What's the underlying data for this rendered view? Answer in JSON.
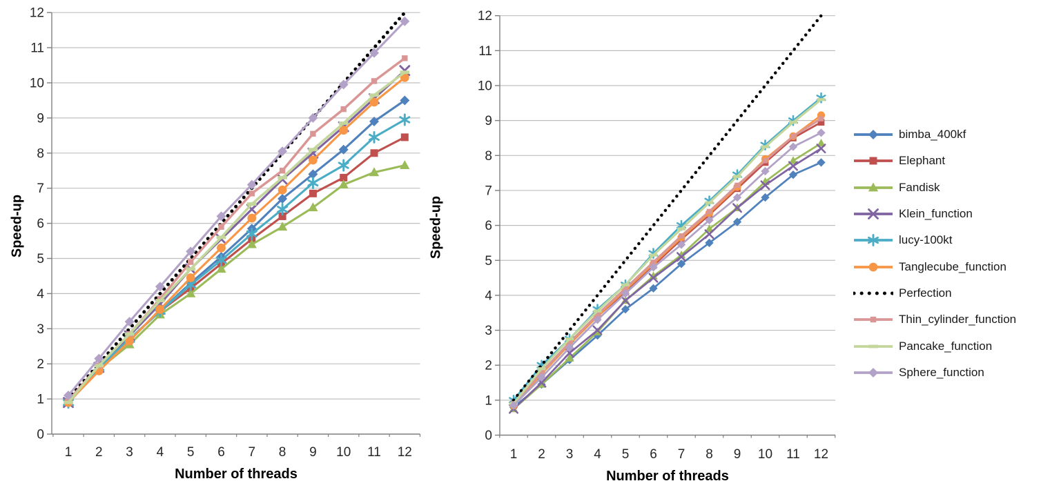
{
  "page": {
    "background": "#ffffff",
    "grid_color": "#bfbfbf",
    "axis_color": "#7f7f7f",
    "tick_text_color": "#262626"
  },
  "legend": {
    "position": "right",
    "items": [
      {
        "id": "bimba_400kf",
        "label": "bimba_400kf"
      },
      {
        "id": "elephant",
        "label": "Elephant"
      },
      {
        "id": "fandisk",
        "label": "Fandisk"
      },
      {
        "id": "klein_function",
        "label": "Klein_function"
      },
      {
        "id": "lucy-100kt",
        "label": "lucy-100kt"
      },
      {
        "id": "tanglecube_function",
        "label": "Tanglecube_function"
      },
      {
        "id": "perfection",
        "label": "Perfection"
      },
      {
        "id": "thin_cylinder_function",
        "label": "Thin_cylinder_function"
      },
      {
        "id": "pancake_function",
        "label": "Pancake_function"
      },
      {
        "id": "sphere_function",
        "label": "Sphere_function"
      }
    ]
  },
  "chart_data": [
    {
      "type": "line",
      "title": "",
      "xlabel": "Number of threads",
      "ylabel": "Speed-up",
      "x": [
        1,
        2,
        3,
        4,
        5,
        6,
        7,
        8,
        9,
        10,
        11,
        12
      ],
      "xticklabels": [
        "1",
        "2",
        "3",
        "4",
        "5",
        "6",
        "7",
        "8",
        "9",
        "10",
        "11",
        "12"
      ],
      "yticks": [
        0,
        1,
        2,
        3,
        4,
        5,
        6,
        7,
        8,
        9,
        10,
        11,
        12
      ],
      "ylim": [
        0,
        12
      ],
      "grid": "horizontal",
      "series": [
        {
          "name": "bimba_400kf",
          "color": "#4F81BD",
          "marker": "diamond",
          "line": "solid",
          "values": [
            0.9,
            1.9,
            2.7,
            3.5,
            4.3,
            5.05,
            5.85,
            6.7,
            7.4,
            8.1,
            8.9,
            9.5
          ]
        },
        {
          "name": "Elephant",
          "color": "#C0504D",
          "marker": "square",
          "line": "solid",
          "values": [
            0.9,
            1.85,
            2.7,
            3.5,
            4.15,
            4.85,
            5.55,
            6.2,
            6.85,
            7.3,
            8.0,
            8.45
          ]
        },
        {
          "name": "Fandisk",
          "color": "#9BBB59",
          "marker": "triangle",
          "line": "solid",
          "values": [
            0.9,
            1.85,
            2.55,
            3.4,
            4.0,
            4.7,
            5.4,
            5.9,
            6.45,
            7.1,
            7.45,
            7.65
          ]
        },
        {
          "name": "Klein_function",
          "color": "#8064A2",
          "marker": "x",
          "line": "solid",
          "values": [
            0.9,
            1.9,
            2.8,
            3.7,
            4.7,
            5.55,
            6.4,
            7.25,
            8.0,
            8.75,
            9.55,
            10.35
          ]
        },
        {
          "name": "lucy-100kt",
          "color": "#4BACC6",
          "marker": "asterisk",
          "line": "solid",
          "values": [
            0.9,
            1.9,
            2.7,
            3.5,
            4.25,
            4.95,
            5.7,
            6.4,
            7.15,
            7.65,
            8.45,
            8.95
          ]
        },
        {
          "name": "Tanglecube_function",
          "color": "#F79646",
          "marker": "circle",
          "line": "solid",
          "values": [
            0.9,
            1.8,
            2.65,
            3.55,
            4.45,
            5.3,
            6.15,
            6.95,
            7.8,
            8.65,
            9.45,
            10.15
          ]
        },
        {
          "name": "Perfection",
          "color": "#000000",
          "marker": "none",
          "line": "dotted",
          "values": [
            1,
            2,
            3,
            4,
            5,
            6,
            7,
            8,
            9,
            10,
            11,
            12
          ]
        },
        {
          "name": "Thin_cylinder_function",
          "color": "#D99694",
          "marker": "square-small",
          "line": "solid",
          "values": [
            0.95,
            1.95,
            2.85,
            3.85,
            4.9,
            5.9,
            6.85,
            7.5,
            8.55,
            9.25,
            10.05,
            10.7
          ]
        },
        {
          "name": "Pancake_function",
          "color": "#C3D69B",
          "marker": "dash",
          "line": "solid",
          "values": [
            0.9,
            1.95,
            2.85,
            3.8,
            4.7,
            5.6,
            6.55,
            7.3,
            8.1,
            8.85,
            9.65,
            10.3
          ]
        },
        {
          "name": "Sphere_function",
          "color": "#B3A2C7",
          "marker": "diamond",
          "line": "solid",
          "values": [
            1.1,
            2.15,
            3.2,
            4.2,
            5.2,
            6.2,
            7.1,
            8.05,
            9.0,
            9.95,
            10.85,
            11.75
          ]
        }
      ]
    },
    {
      "type": "line",
      "title": "",
      "xlabel": "Number of threads",
      "ylabel": "Speed-up",
      "x": [
        1,
        2,
        3,
        4,
        5,
        6,
        7,
        8,
        9,
        10,
        11,
        12
      ],
      "xticklabels": [
        "1",
        "2",
        "3",
        "4",
        "5",
        "6",
        "7",
        "8",
        "9",
        "10",
        "11",
        "12"
      ],
      "yticks": [
        0,
        1,
        2,
        3,
        4,
        5,
        6,
        7,
        8,
        9,
        10,
        11,
        12
      ],
      "ylim": [
        0,
        12
      ],
      "grid": "horizontal",
      "series": [
        {
          "name": "bimba_400kf",
          "color": "#4F81BD",
          "marker": "diamond",
          "line": "solid",
          "values": [
            0.8,
            1.45,
            2.15,
            2.85,
            3.6,
            4.2,
            4.9,
            5.5,
            6.1,
            6.8,
            7.45,
            7.8
          ]
        },
        {
          "name": "Elephant",
          "color": "#C0504D",
          "marker": "square",
          "line": "solid",
          "values": [
            0.85,
            1.75,
            2.6,
            3.4,
            4.1,
            4.85,
            5.6,
            6.3,
            7.05,
            7.8,
            8.5,
            8.95
          ]
        },
        {
          "name": "Fandisk",
          "color": "#9BBB59",
          "marker": "triangle",
          "line": "solid",
          "values": [
            0.75,
            1.45,
            2.2,
            2.95,
            3.85,
            4.55,
            5.15,
            5.9,
            6.5,
            7.25,
            7.85,
            8.35
          ]
        },
        {
          "name": "Klein_function",
          "color": "#8064A2",
          "marker": "x",
          "line": "solid",
          "values": [
            0.75,
            1.5,
            2.35,
            3.0,
            3.85,
            4.5,
            5.1,
            5.75,
            6.5,
            7.15,
            7.7,
            8.2
          ]
        },
        {
          "name": "lucy-100kt",
          "color": "#4BACC6",
          "marker": "asterisk",
          "line": "solid",
          "values": [
            1.0,
            2.0,
            2.75,
            3.6,
            4.3,
            5.2,
            6.0,
            6.7,
            7.45,
            8.3,
            9.0,
            9.65
          ]
        },
        {
          "name": "Tanglecube_function",
          "color": "#F79646",
          "marker": "circle",
          "line": "solid",
          "values": [
            0.85,
            1.75,
            2.6,
            3.4,
            4.15,
            4.9,
            5.65,
            6.35,
            7.1,
            7.9,
            8.55,
            9.15
          ]
        },
        {
          "name": "Perfection",
          "color": "#000000",
          "marker": "none",
          "line": "dotted",
          "values": [
            1,
            2,
            3,
            4,
            5,
            6,
            7,
            8,
            9,
            10,
            11,
            12
          ]
        },
        {
          "name": "Thin_cylinder_function",
          "color": "#D99694",
          "marker": "square-small",
          "line": "solid",
          "values": [
            0.9,
            1.8,
            2.65,
            3.45,
            4.2,
            4.95,
            5.7,
            6.4,
            7.15,
            7.85,
            8.55,
            9.05
          ]
        },
        {
          "name": "Pancake_function",
          "color": "#C3D69B",
          "marker": "dash",
          "line": "solid",
          "values": [
            0.9,
            1.9,
            2.75,
            3.55,
            4.3,
            5.15,
            5.9,
            6.65,
            7.4,
            8.25,
            8.95,
            9.6
          ]
        },
        {
          "name": "Sphere_function",
          "color": "#B3A2C7",
          "marker": "diamond",
          "line": "solid",
          "values": [
            0.85,
            1.65,
            2.5,
            3.3,
            4.05,
            4.8,
            5.45,
            6.15,
            6.8,
            7.55,
            8.25,
            8.65
          ]
        }
      ]
    }
  ]
}
